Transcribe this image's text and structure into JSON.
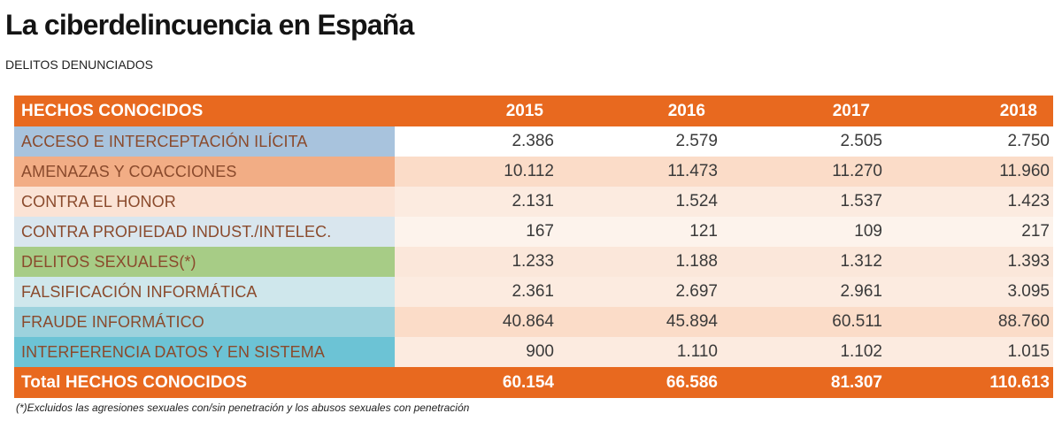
{
  "chart_data": {
    "type": "table",
    "title": "La ciberdelincuencia en España",
    "subtitle": "DELITOS DENUNCIADOS",
    "header": {
      "label": "HECHOS CONOCIDOS",
      "years": [
        "2015",
        "2016",
        "2017",
        "2018"
      ]
    },
    "rows": [
      {
        "label": "ACCESO  E INTERCEPTACIÓN ILÍCITA",
        "values": [
          "2.386",
          "2.579",
          "2.505",
          "2.750"
        ],
        "label_color": "#a8c3dd",
        "row_color": "#ffffff"
      },
      {
        "label": "AMENAZAS Y COACCIONES",
        "values": [
          "10.112",
          "11.473",
          "11.270",
          "11.960"
        ],
        "label_color": "#f2ad85",
        "row_color": "#fbdcc8"
      },
      {
        "label": "CONTRA EL HONOR",
        "values": [
          "2.131",
          "1.524",
          "1.537",
          "1.423"
        ],
        "label_color": "#fbe3d5",
        "row_color": "#fcebe0"
      },
      {
        "label": "CONTRA PROPIEDAD INDUST./INTELEC.",
        "values": [
          "167",
          "121",
          "109",
          "217"
        ],
        "label_color": "#d9e6ee",
        "row_color": "#fdf3ec"
      },
      {
        "label": "DELITOS SEXUALES(*)",
        "values": [
          "1.233",
          "1.188",
          "1.312",
          "1.393"
        ],
        "label_color": "#a7cc86",
        "row_color": "#fbe7da"
      },
      {
        "label": "FALSIFICACIÓN INFORMÁTICA",
        "values": [
          "2.361",
          "2.697",
          "2.961",
          "3.095"
        ],
        "label_color": "#cfe7ec",
        "row_color": "#fcebe0"
      },
      {
        "label": "FRAUDE INFORMÁTICO",
        "values": [
          "40.864",
          "45.894",
          "60.511",
          "88.760"
        ],
        "label_color": "#9dd2dd",
        "row_color": "#fbdcc8"
      },
      {
        "label": "INTERFERENCIA DATOS Y EN SISTEMA",
        "values": [
          "900",
          "1.110",
          "1.102",
          "1.015"
        ],
        "label_color": "#6cc3d5",
        "row_color": "#fcebe0"
      }
    ],
    "total": {
      "label": "Total HECHOS CONOCIDOS",
      "values": [
        "60.154",
        "66.586",
        "81.307",
        "110.613"
      ]
    },
    "footnote": "(*)Excluidos las agresiones sexuales con/sin penetración y los abusos sexuales con penetración",
    "accent_color": "#e8691f"
  }
}
